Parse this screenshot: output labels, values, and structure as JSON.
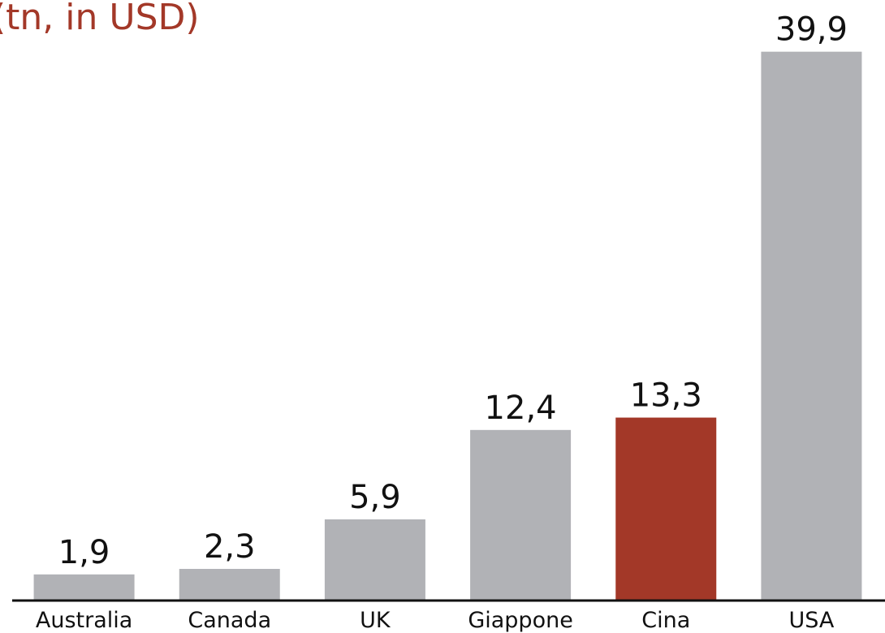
{
  "chart_data": {
    "type": "bar",
    "title": "(tn, in USD)",
    "categories": [
      "Australia",
      "Canada",
      "UK",
      "Giappone",
      "Cina",
      "USA"
    ],
    "values": [
      1.9,
      2.3,
      5.9,
      12.4,
      13.3,
      39.9
    ],
    "value_labels": [
      "1,9",
      "2,3",
      "5,9",
      "12,4",
      "13,3",
      "39,9"
    ],
    "colors": [
      "#b1b2b6",
      "#b1b2b6",
      "#b1b2b6",
      "#b1b2b6",
      "#a33828",
      "#b1b2b6"
    ],
    "ylim": [
      0,
      40
    ]
  }
}
